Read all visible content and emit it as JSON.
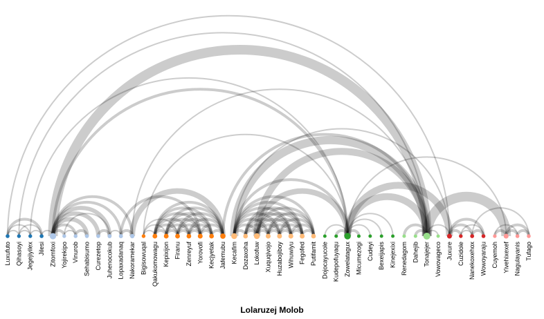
{
  "chart_data": {
    "type": "arc-diagram",
    "title": "Lolaruzej Molob",
    "groups": [
      {
        "color": "#1f77b4",
        "nodes": [
          "Luxufuto",
          "Qihasoyi",
          "Jegejiyilex",
          "Jilesi"
        ]
      },
      {
        "color": "#aec7e8",
        "nodes": [
          "Zitomfoxi",
          "Yojirekipo",
          "Vinurob",
          "Sehabisumo",
          "Curezetop",
          "Juhenocokub",
          "Lopaxadanaq",
          "Nakoramekar"
        ]
      },
      {
        "color": "#ff7f0e",
        "nodes": [
          "Bigisowuqal",
          "Qakukomowagu",
          "Kepixijon",
          "Firanu",
          "Zenreyuf",
          "Yorovofi",
          "Kecjyetak",
          "Jafemubu"
        ]
      },
      {
        "color": "#ffbb78",
        "nodes": [
          "Kecafim",
          "Dozaxoha",
          "Lokofuw",
          "Xuquqivojo",
          "Huzabojiboy",
          "Wihuwiyu",
          "Fegofed",
          "Putifamit"
        ]
      },
      {
        "color": "#2ca02c",
        "nodes": [
          "Dojocayucole",
          "Kudepofuyaqu",
          "Zowelatagux",
          "Micumezogi",
          "Cudeyi",
          "Bexeijapis",
          "Kinejexixi"
        ]
      },
      {
        "color": "#98df8a",
        "nodes": [
          "Renedagom",
          "Dahejib",
          "Tonajejer",
          "Vowovageco"
        ]
      },
      {
        "color": "#d62728",
        "nodes": [
          "Juxure",
          "Cuzidole",
          "Nanekoxehox",
          "Wowoyaraju"
        ]
      },
      {
        "color": "#ff9896",
        "nodes": [
          "Cuyemoh",
          "Yivehixexef",
          "Nagulayanis",
          "Tufago"
        ]
      }
    ],
    "links": [
      [
        "Luxufuto",
        "Qihasoyi",
        1
      ],
      [
        "Luxufuto",
        "Jegejiyilex",
        1
      ],
      [
        "Luxufuto",
        "Jilesi",
        2
      ],
      [
        "Qihasoyi",
        "Jegejiyilex",
        1
      ],
      [
        "Qihasoyi",
        "Jilesi",
        1
      ],
      [
        "Jegejiyilex",
        "Jilesi",
        1
      ],
      [
        "Luxufuto",
        "Juxure",
        1
      ],
      [
        "Qihasoyi",
        "Tonajejer",
        1
      ],
      [
        "Jegejiyilex",
        "Zowelatagux",
        1
      ],
      [
        "Jilesi",
        "Zitomfoxi",
        1
      ],
      [
        "Zitomfoxi",
        "Yojirekipo",
        2
      ],
      [
        "Zitomfoxi",
        "Vinurob",
        2
      ],
      [
        "Zitomfoxi",
        "Sehabisumo",
        3
      ],
      [
        "Zitomfoxi",
        "Curezetop",
        3
      ],
      [
        "Zitomfoxi",
        "Juhenocokub",
        3
      ],
      [
        "Zitomfoxi",
        "Lopaxadanaq",
        2
      ],
      [
        "Zitomfoxi",
        "Nakoramekar",
        2
      ],
      [
        "Yojirekipo",
        "Vinurob",
        1
      ],
      [
        "Yojirekipo",
        "Juhenocokub",
        1
      ],
      [
        "Vinurob",
        "Sehabisumo",
        2
      ],
      [
        "Curezetop",
        "Juhenocokub",
        2
      ],
      [
        "Juhenocokub",
        "Lopaxadanaq",
        1
      ],
      [
        "Lopaxadanaq",
        "Nakoramekar",
        2
      ],
      [
        "Zitomfoxi",
        "Tonajejer",
        7
      ],
      [
        "Zitomfoxi",
        "Zowelatagux",
        2
      ],
      [
        "Nakoramekar",
        "Jafemubu",
        4
      ],
      [
        "Lopaxadanaq",
        "Yorovofi",
        2
      ],
      [
        "Bigisowuqal",
        "Qakukomowagu",
        1
      ],
      [
        "Bigisowuqal",
        "Kepixijon",
        1
      ],
      [
        "Bigisowuqal",
        "Firanu",
        1
      ],
      [
        "Qakukomowagu",
        "Kepixijon",
        2
      ],
      [
        "Qakukomowagu",
        "Firanu",
        2
      ],
      [
        "Qakukomowagu",
        "Zenreyuf",
        2
      ],
      [
        "Qakukomowagu",
        "Yorovofi",
        2
      ],
      [
        "Qakukomowagu",
        "Kecjyetak",
        2
      ],
      [
        "Qakukomowagu",
        "Jafemubu",
        2
      ],
      [
        "Kepixijon",
        "Firanu",
        2
      ],
      [
        "Kepixijon",
        "Zenreyuf",
        2
      ],
      [
        "Kepixijon",
        "Yorovofi",
        2
      ],
      [
        "Kepixijon",
        "Kecjyetak",
        2
      ],
      [
        "Kepixijon",
        "Jafemubu",
        2
      ],
      [
        "Firanu",
        "Zenreyuf",
        2
      ],
      [
        "Firanu",
        "Yorovofi",
        2
      ],
      [
        "Firanu",
        "Kecjyetak",
        2
      ],
      [
        "Firanu",
        "Jafemubu",
        2
      ],
      [
        "Zenreyuf",
        "Yorovofi",
        2
      ],
      [
        "Zenreyuf",
        "Kecjyetak",
        2
      ],
      [
        "Zenreyuf",
        "Jafemubu",
        2
      ],
      [
        "Yorovofi",
        "Kecjyetak",
        2
      ],
      [
        "Yorovofi",
        "Jafemubu",
        2
      ],
      [
        "Kecjyetak",
        "Jafemubu",
        2
      ],
      [
        "Bigisowuqal",
        "Zowelatagux",
        1
      ],
      [
        "Kecafim",
        "Dozaxoha",
        2
      ],
      [
        "Kecafim",
        "Lokofuw",
        2
      ],
      [
        "Kecafim",
        "Xuquqivojo",
        2
      ],
      [
        "Kecafim",
        "Huzabojiboy",
        2
      ],
      [
        "Kecafim",
        "Wihuwiyu",
        2
      ],
      [
        "Kecafim",
        "Fegofed",
        2
      ],
      [
        "Kecafim",
        "Putifamit",
        2
      ],
      [
        "Dozaxoha",
        "Lokofuw",
        2
      ],
      [
        "Dozaxoha",
        "Xuquqivojo",
        2
      ],
      [
        "Dozaxoha",
        "Huzabojiboy",
        2
      ],
      [
        "Dozaxoha",
        "Wihuwiyu",
        2
      ],
      [
        "Dozaxoha",
        "Fegofed",
        2
      ],
      [
        "Lokofuw",
        "Xuquqivojo",
        2
      ],
      [
        "Lokofuw",
        "Huzabojiboy",
        2
      ],
      [
        "Lokofuw",
        "Wihuwiyu",
        2
      ],
      [
        "Lokofuw",
        "Fegofed",
        2
      ],
      [
        "Lokofuw",
        "Putifamit",
        2
      ],
      [
        "Xuquqivojo",
        "Huzabojiboy",
        2
      ],
      [
        "Xuquqivojo",
        "Wihuwiyu",
        2
      ],
      [
        "Xuquqivojo",
        "Fegofed",
        2
      ],
      [
        "Xuquqivojo",
        "Putifamit",
        2
      ],
      [
        "Huzabojiboy",
        "Wihuwiyu",
        2
      ],
      [
        "Huzabojiboy",
        "Fegofed",
        2
      ],
      [
        "Huzabojiboy",
        "Putifamit",
        2
      ],
      [
        "Wihuwiyu",
        "Fegofed",
        2
      ],
      [
        "Wihuwiyu",
        "Putifamit",
        2
      ],
      [
        "Fegofed",
        "Putifamit",
        2
      ],
      [
        "Kecafim",
        "Tonajejer",
        6
      ],
      [
        "Kecafim",
        "Zowelatagux",
        2
      ],
      [
        "Kecafim",
        "Juxure",
        1
      ],
      [
        "Jafemubu",
        "Tonajejer",
        2
      ],
      [
        "Lokofuw",
        "Tonajejer",
        5
      ],
      [
        "Lokofuw",
        "Zowelatagux",
        4
      ],
      [
        "Dojocayucole",
        "Zowelatagux",
        1
      ],
      [
        "Kudepofuyaqu",
        "Zowelatagux",
        2
      ],
      [
        "Zowelatagux",
        "Micumezogi",
        2
      ],
      [
        "Zowelatagux",
        "Cudeyi",
        1
      ],
      [
        "Zowelatagux",
        "Bexeijapis",
        1
      ],
      [
        "Zowelatagux",
        "Kinejexixi",
        1
      ],
      [
        "Zowelatagux",
        "Tonajejer",
        5
      ],
      [
        "Zowelatagux",
        "Juxure",
        5
      ],
      [
        "Zowelatagux",
        "Yivehixexef",
        1
      ],
      [
        "Renedagom",
        "Tonajejer",
        2
      ],
      [
        "Dahejib",
        "Tonajejer",
        2
      ],
      [
        "Tonajejer",
        "Vowovageco",
        1
      ],
      [
        "Tonajejer",
        "Juxure",
        1
      ],
      [
        "Tonajejer",
        "Yivehixexef",
        7
      ],
      [
        "Tonajejer",
        "Nakoramekar",
        1
      ],
      [
        "Juxure",
        "Cuzidole",
        2
      ],
      [
        "Juxure",
        "Nanekoxehox",
        2
      ],
      [
        "Juxure",
        "Wowoyaraju",
        2
      ],
      [
        "Cuzidole",
        "Nanekoxehox",
        1
      ],
      [
        "Cuzidole",
        "Wowoyaraju",
        1
      ],
      [
        "Nanekoxehox",
        "Wowoyaraju",
        2
      ],
      [
        "Nanekoxehox",
        "Tufago",
        1
      ],
      [
        "Cuyemoh",
        "Yivehixexef",
        2
      ],
      [
        "Cuyemoh",
        "Nagulayanis",
        1
      ],
      [
        "Yivehixexef",
        "Nagulayanis",
        2
      ],
      [
        "Yivehixexef",
        "Tufago",
        2
      ],
      [
        "Nagulayanis",
        "Tufago",
        2
      ]
    ]
  }
}
